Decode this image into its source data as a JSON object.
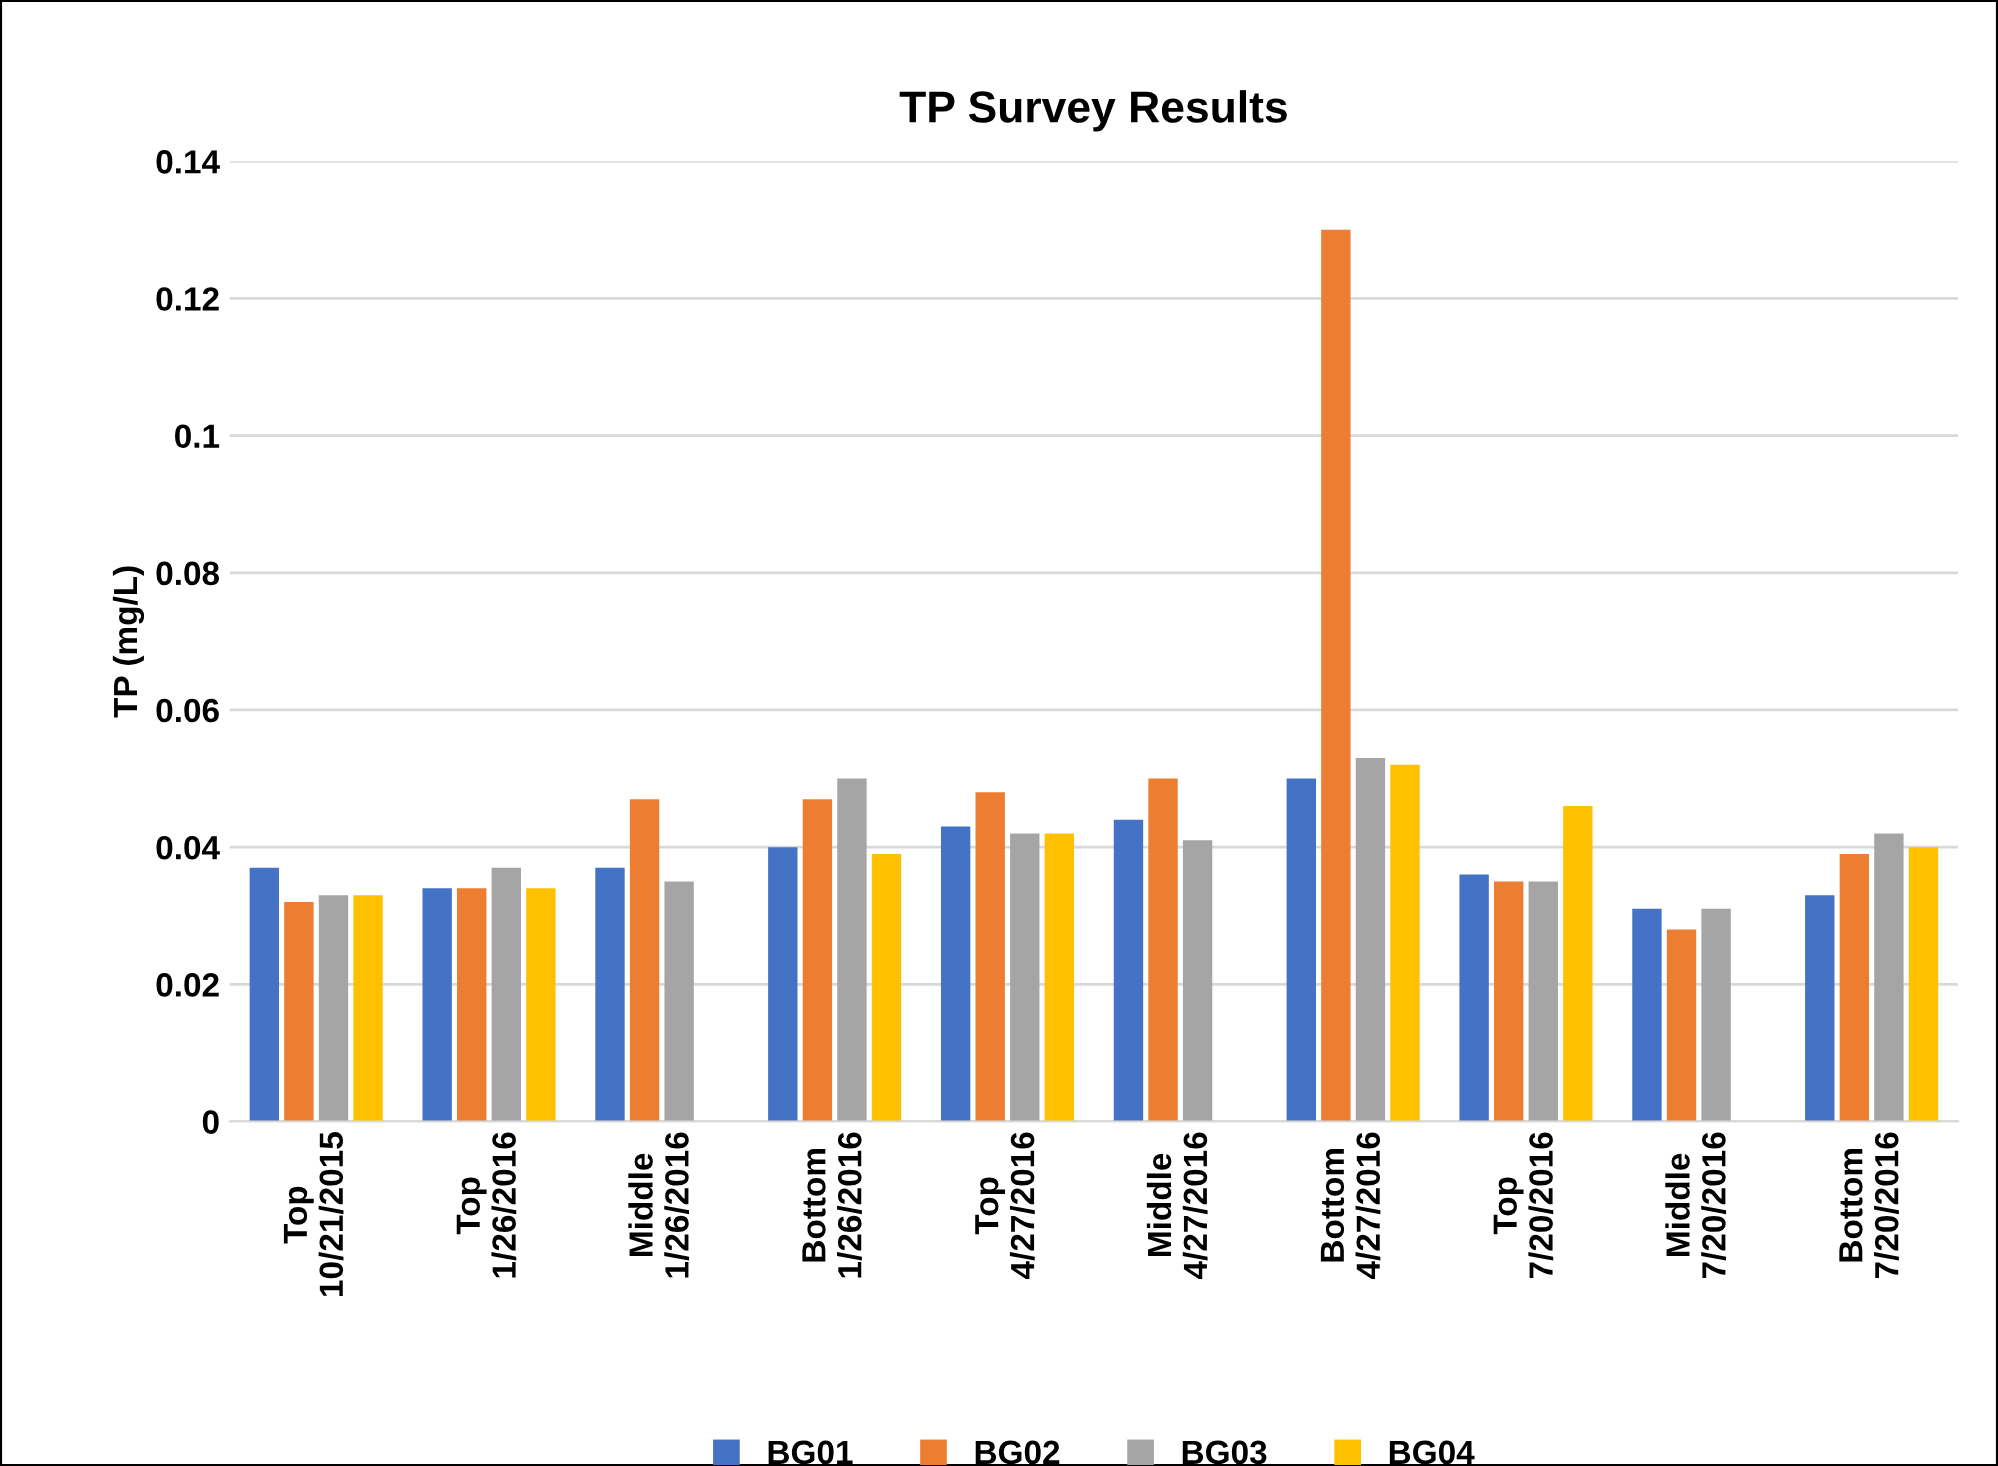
{
  "chart_data": {
    "type": "bar",
    "title": "TP Survey Results",
    "ylabel": "TP (mg/L)",
    "categories": [
      "Top\n10/21/2015",
      "Top\n1/26/2016",
      "Middle\n1/26/2016",
      "Bottom\n1/26/2016",
      "Top\n4/27/2016",
      "Middle\n4/27/2016",
      "Bottom\n4/27/2016",
      "Top\n7/20/2016",
      "Middle\n7/20/2016",
      "Bottom\n7/20/2016"
    ],
    "series": [
      {
        "name": "BG01",
        "color": "#4472c4",
        "values": [
          0.037,
          0.034,
          0.037,
          0.04,
          0.043,
          0.044,
          0.05,
          0.036,
          0.031,
          0.033
        ]
      },
      {
        "name": "BG02",
        "color": "#ed7d31",
        "values": [
          0.032,
          0.034,
          0.047,
          0.047,
          0.048,
          0.05,
          0.13,
          0.035,
          0.028,
          0.039
        ]
      },
      {
        "name": "BG03",
        "color": "#a5a5a5",
        "values": [
          0.033,
          0.037,
          0.035,
          0.05,
          0.042,
          0.041,
          0.053,
          0.035,
          0.031,
          0.042
        ]
      },
      {
        "name": "BG04",
        "color": "#ffc000",
        "values": [
          0.033,
          0.034,
          null,
          0.039,
          0.042,
          null,
          0.052,
          0.046,
          null,
          0.04
        ]
      }
    ],
    "ylim": [
      0,
      0.14
    ],
    "yticks": [
      {
        "value": 0,
        "label": "0"
      },
      0.02,
      0.04,
      0.06,
      0.08,
      0.1,
      0.12,
      0.14
    ],
    "grid": "y",
    "legend": "bottom"
  }
}
